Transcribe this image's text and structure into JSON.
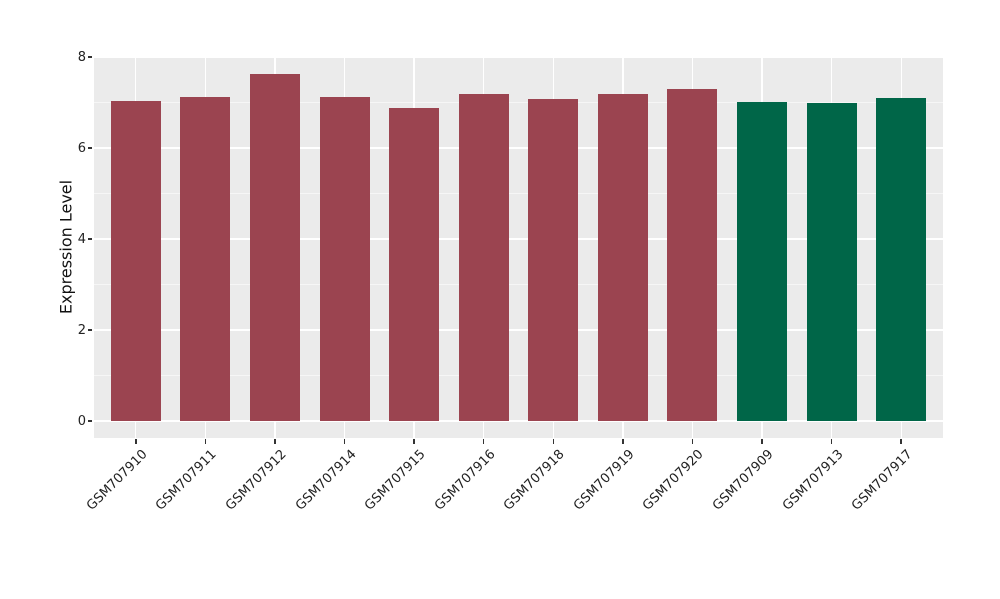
{
  "chart_data": {
    "type": "bar",
    "title": "",
    "xlabel": "",
    "ylabel": "Expression Level",
    "ylim": [
      0,
      8
    ],
    "yticks": [
      0,
      2,
      4,
      6,
      8
    ],
    "yticks_minor": [
      1,
      3,
      5,
      7
    ],
    "grid": "horizontal major+minor and vertical at category centers, white on gray panel",
    "legend_position": "none",
    "categories": [
      "GSM707910",
      "GSM707911",
      "GSM707912",
      "GSM707914",
      "GSM707915",
      "GSM707916",
      "GSM707918",
      "GSM707919",
      "GSM707920",
      "GSM707909",
      "GSM707913",
      "GSM707917"
    ],
    "values": [
      7.03,
      7.11,
      7.63,
      7.11,
      6.88,
      7.18,
      7.08,
      7.18,
      7.29,
      7.01,
      6.99,
      7.1
    ],
    "colors": [
      "#9B4450",
      "#9B4450",
      "#9B4450",
      "#9B4450",
      "#9B4450",
      "#9B4450",
      "#9B4450",
      "#9B4450",
      "#9B4450",
      "#006648",
      "#006648",
      "#006648"
    ],
    "groups": [
      {
        "name": "maroon-group",
        "color": "#9B4450",
        "samples": [
          "GSM707910",
          "GSM707911",
          "GSM707912",
          "GSM707914",
          "GSM707915",
          "GSM707916",
          "GSM707918",
          "GSM707919",
          "GSM707920"
        ]
      },
      {
        "name": "green-group",
        "color": "#006648",
        "samples": [
          "GSM707909",
          "GSM707913",
          "GSM707917"
        ]
      }
    ],
    "panel_background": "#EBEBEB",
    "gridline_color": "#FFFFFF",
    "text_color": "#222222",
    "figure_background": "#FFFFFF"
  }
}
